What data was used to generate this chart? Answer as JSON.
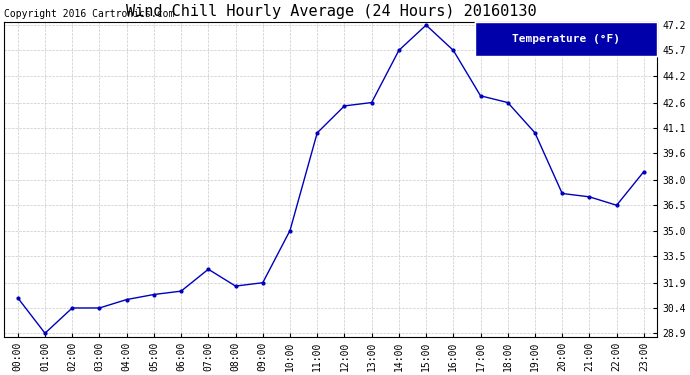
{
  "title": "Wind Chill Hourly Average (24 Hours) 20160130",
  "copyright_text": "Copyright 2016 Cartronics.com",
  "legend_label": "Temperature (°F)",
  "hours": [
    "00:00",
    "01:00",
    "02:00",
    "03:00",
    "04:00",
    "05:00",
    "06:00",
    "07:00",
    "08:00",
    "09:00",
    "10:00",
    "11:00",
    "12:00",
    "13:00",
    "14:00",
    "15:00",
    "16:00",
    "17:00",
    "18:00",
    "19:00",
    "20:00",
    "21:00",
    "22:00",
    "23:00"
  ],
  "values": [
    31.0,
    28.9,
    30.4,
    30.4,
    30.9,
    31.2,
    31.4,
    32.7,
    31.7,
    31.9,
    35.0,
    40.8,
    42.4,
    42.6,
    45.7,
    47.2,
    45.7,
    43.0,
    42.6,
    40.8,
    37.2,
    37.0,
    36.5,
    38.5
  ],
  "ylim_min": 28.9,
  "ylim_max": 47.2,
  "yticks": [
    28.9,
    30.4,
    31.9,
    33.5,
    35.0,
    36.5,
    38.0,
    39.6,
    41.1,
    42.6,
    44.2,
    45.7,
    47.2
  ],
  "line_color": "#0000bb",
  "marker": ".",
  "marker_size": 4,
  "background_color": "#ffffff",
  "plot_bg_color": "#ffffff",
  "grid_color": "#bbbbbb",
  "title_fontsize": 11,
  "tick_fontsize": 7,
  "copyright_fontsize": 7,
  "legend_bg_color": "#0000aa",
  "legend_text_color": "#ffffff",
  "legend_fontsize": 8
}
